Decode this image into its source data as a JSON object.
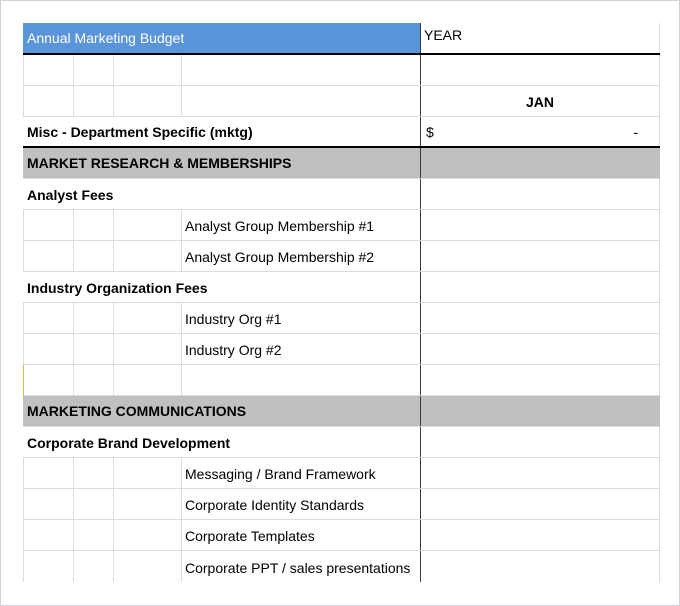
{
  "sheet": {
    "title": "Annual Marketing Budget",
    "year_label": "YEAR",
    "month_label": "JAN",
    "summary": {
      "label": "Misc - Department Specific (mktg)",
      "currency": "$",
      "value": "-"
    },
    "sections": [
      {
        "heading": "MARKET RESEARCH & MEMBERSHIPS",
        "groups": [
          {
            "label": "Analyst Fees",
            "items": [
              "Analyst Group Membership #1",
              "Analyst Group Membership #2"
            ]
          },
          {
            "label": "Industry Organization Fees",
            "items": [
              "Industry Org #1",
              "Industry Org #2"
            ]
          }
        ]
      },
      {
        "heading": "MARKETING COMMUNICATIONS",
        "groups": [
          {
            "label": "Corporate Brand Development",
            "items": [
              "Messaging / Brand Framework",
              "Corporate Identity Standards",
              "Corporate Templates",
              "Corporate PPT / sales presentations"
            ]
          }
        ]
      }
    ]
  }
}
